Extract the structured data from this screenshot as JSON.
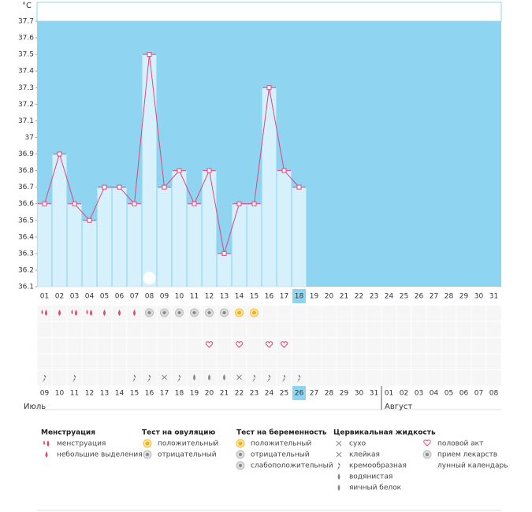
{
  "chart_data": {
    "type": "line",
    "y_label": "°C",
    "categories": [
      "01",
      "02",
      "03",
      "04",
      "05",
      "06",
      "07",
      "08",
      "09",
      "10",
      "11",
      "12",
      "13",
      "14",
      "15",
      "16",
      "17",
      "18",
      "19",
      "20",
      "21",
      "22",
      "23",
      "24",
      "25",
      "26",
      "27",
      "28",
      "29",
      "30",
      "31"
    ],
    "series": [
      {
        "name": "temperature",
        "color": "#e0457b",
        "values": [
          36.6,
          36.9,
          36.6,
          36.5,
          36.7,
          36.7,
          36.6,
          37.5,
          36.7,
          36.8,
          36.6,
          36.8,
          36.3,
          36.6,
          36.6,
          37.3,
          36.8,
          36.7,
          null,
          null,
          null,
          null,
          null,
          null,
          null,
          null,
          null,
          null,
          null,
          null,
          null
        ]
      }
    ],
    "ylim": [
      36.1,
      37.7
    ],
    "yticks": [
      36.1,
      36.2,
      36.3,
      36.4,
      36.5,
      36.6,
      36.7,
      36.8,
      36.9,
      37,
      37.1,
      37.2,
      37.3,
      37.4,
      37.5,
      37.6,
      37.7
    ],
    "background_color": "#8fd5f2",
    "bar_color": "#d6f1fc",
    "highlight_category": "18",
    "dates": [
      {
        "label": "09"
      },
      {
        "label": "10"
      },
      {
        "label": "11"
      },
      {
        "label": "12"
      },
      {
        "label": "13",
        "weekend": true
      },
      {
        "label": "14",
        "weekend": true
      },
      {
        "label": "15"
      },
      {
        "label": "16"
      },
      {
        "label": "17"
      },
      {
        "label": "18"
      },
      {
        "label": "19"
      },
      {
        "label": "20",
        "weekend": true
      },
      {
        "label": "21",
        "weekend": true
      },
      {
        "label": "22"
      },
      {
        "label": "23"
      },
      {
        "label": "24"
      },
      {
        "label": "25"
      },
      {
        "label": "26"
      },
      {
        "label": "27",
        "weekend": true
      },
      {
        "label": "28",
        "weekend": true
      },
      {
        "label": "29"
      },
      {
        "label": "30"
      },
      {
        "label": "31"
      },
      {
        "label": "01"
      },
      {
        "label": "02"
      },
      {
        "label": "03",
        "weekend": true
      },
      {
        "label": "04",
        "weekend": true
      },
      {
        "label": "05"
      },
      {
        "label": "06"
      },
      {
        "label": "07"
      },
      {
        "label": "08"
      }
    ],
    "months": [
      "Июль",
      "Август"
    ]
  },
  "legend": [
    {
      "title": "Менструация",
      "items": [
        "менструация",
        "небольшие выделения"
      ]
    },
    {
      "title": "Тест на овуляцию",
      "items": [
        "положительный",
        "отрицательный"
      ]
    },
    {
      "title": "Тест на беременность",
      "items": [
        "положительный",
        "отрицательный",
        "слабоположительный"
      ]
    },
    {
      "title": "Цервикальная жидкость",
      "items": [
        "сухо",
        "клейкая",
        "кремообразная",
        "водянистая",
        "яичный белок"
      ]
    },
    {
      "title": null,
      "items": [
        "половой акт",
        "прием лекарств",
        "лунный календарь"
      ]
    }
  ]
}
